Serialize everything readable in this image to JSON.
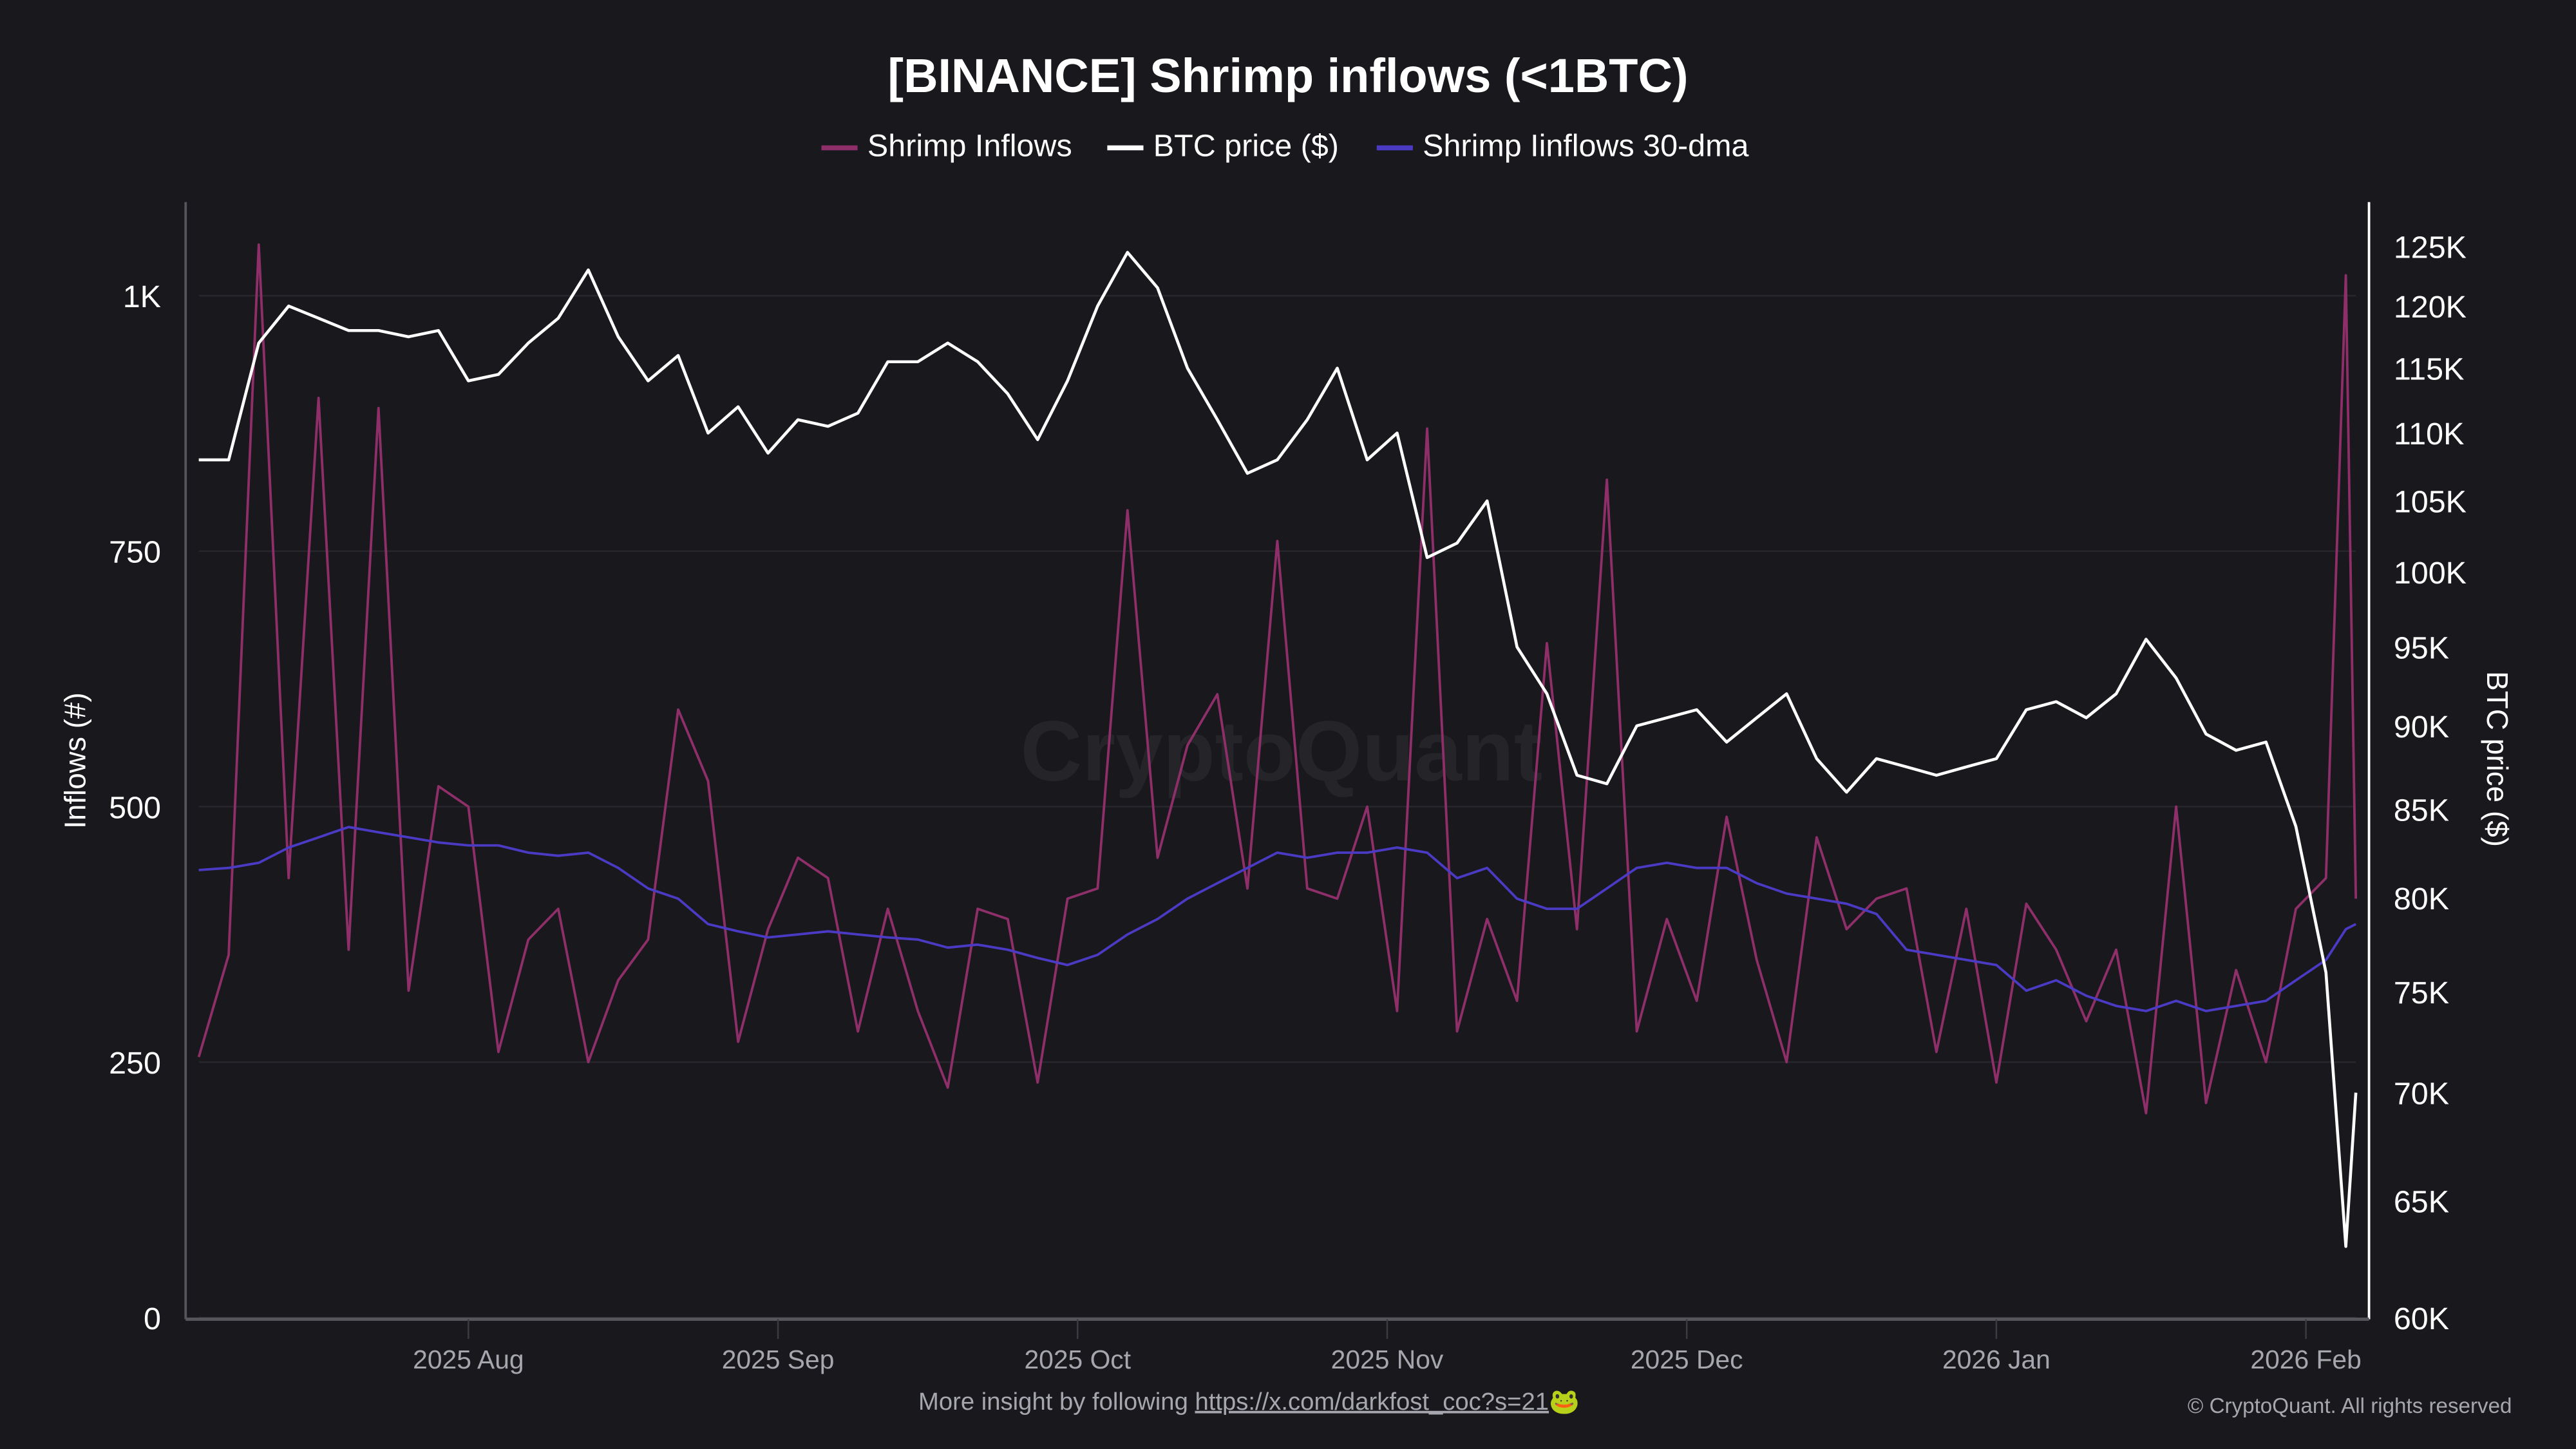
{
  "chart_data": {
    "type": "line",
    "title": "[BINANCE] Shrimp inflows (<1BTC)",
    "legend_placement": "top-center",
    "watermark": "CryptoQuant",
    "grid": true,
    "y_left": {
      "label": "Inflows (#)",
      "range": [
        0,
        1090
      ],
      "scale": "linear",
      "ticks": [
        0,
        250,
        500,
        750,
        1000
      ],
      "tick_labels": [
        "0",
        "250",
        "500",
        "750",
        "1K"
      ]
    },
    "y_right": {
      "label": "BTC price ($)",
      "range": [
        60000,
        128000
      ],
      "scale": "log",
      "ticks": [
        60000,
        65000,
        70000,
        75000,
        80000,
        85000,
        90000,
        95000,
        100000,
        105000,
        110000,
        115000,
        120000,
        125000
      ],
      "tick_labels": [
        "60K",
        "65K",
        "70K",
        "75K",
        "80K",
        "85K",
        "90K",
        "95K",
        "100K",
        "105K",
        "110K",
        "115K",
        "120K",
        "125K"
      ]
    },
    "x_axis": {
      "ticks": [
        "2025-08-01",
        "2025-09-01",
        "2025-10-01",
        "2025-11-01",
        "2025-12-01",
        "2026-01-01",
        "2026-02-01"
      ],
      "tick_labels": [
        "2025 Aug",
        "2025 Sep",
        "2025 Oct",
        "2025 Nov",
        "2025 Dec",
        "2026 Jan",
        "2026 Feb"
      ],
      "range": [
        "2025-07-05",
        "2026-02-06"
      ]
    },
    "x": [
      "2025-07-05",
      "2025-07-08",
      "2025-07-11",
      "2025-07-14",
      "2025-07-17",
      "2025-07-20",
      "2025-07-23",
      "2025-07-26",
      "2025-07-29",
      "2025-08-01",
      "2025-08-04",
      "2025-08-07",
      "2025-08-10",
      "2025-08-13",
      "2025-08-16",
      "2025-08-19",
      "2025-08-22",
      "2025-08-25",
      "2025-08-28",
      "2025-08-31",
      "2025-09-03",
      "2025-09-06",
      "2025-09-09",
      "2025-09-12",
      "2025-09-15",
      "2025-09-18",
      "2025-09-21",
      "2025-09-24",
      "2025-09-27",
      "2025-09-30",
      "2025-10-03",
      "2025-10-06",
      "2025-10-09",
      "2025-10-12",
      "2025-10-15",
      "2025-10-18",
      "2025-10-21",
      "2025-10-24",
      "2025-10-27",
      "2025-10-30",
      "2025-11-02",
      "2025-11-05",
      "2025-11-08",
      "2025-11-11",
      "2025-11-14",
      "2025-11-17",
      "2025-11-20",
      "2025-11-23",
      "2025-11-26",
      "2025-11-29",
      "2025-12-02",
      "2025-12-05",
      "2025-12-08",
      "2025-12-11",
      "2025-12-14",
      "2025-12-17",
      "2025-12-20",
      "2025-12-23",
      "2025-12-26",
      "2025-12-29",
      "2026-01-01",
      "2026-01-04",
      "2026-01-07",
      "2026-01-10",
      "2026-01-13",
      "2026-01-16",
      "2026-01-19",
      "2026-01-22",
      "2026-01-25",
      "2026-01-28",
      "2026-01-31",
      "2026-02-03",
      "2026-02-05",
      "2026-02-06"
    ],
    "series": [
      {
        "name": "Shrimp Inflows",
        "axis": "left",
        "color": "#8e2f6a",
        "values": [
          255,
          355,
          1050,
          430,
          900,
          360,
          890,
          320,
          520,
          500,
          260,
          370,
          400,
          250,
          330,
          370,
          595,
          525,
          270,
          380,
          450,
          430,
          280,
          400,
          300,
          225,
          400,
          390,
          230,
          410,
          420,
          790,
          450,
          560,
          610,
          420,
          760,
          420,
          410,
          500,
          300,
          870,
          280,
          390,
          310,
          660,
          380,
          820,
          280,
          390,
          310,
          490,
          350,
          250,
          470,
          380,
          410,
          420,
          260,
          400,
          230,
          405,
          360,
          290,
          360,
          200,
          500,
          210,
          340,
          250,
          400,
          430,
          1020,
          410
        ]
      },
      {
        "name": "BTC price ($)",
        "axis": "right",
        "color": "#ffffff",
        "values": [
          108000,
          108000,
          117000,
          120000,
          119000,
          118000,
          118000,
          117500,
          118000,
          114000,
          114500,
          117000,
          119000,
          123000,
          117500,
          114000,
          116000,
          110000,
          112000,
          108500,
          111000,
          110500,
          111500,
          115500,
          115500,
          117000,
          115500,
          113000,
          109500,
          114000,
          120000,
          124500,
          121500,
          115000,
          111000,
          107000,
          108000,
          111000,
          115000,
          108000,
          110000,
          101000,
          102000,
          105000,
          95000,
          92000,
          87000,
          86500,
          90000,
          90500,
          91000,
          89000,
          90500,
          92000,
          88000,
          86000,
          88000,
          87500,
          87000,
          87500,
          88000,
          91000,
          91500,
          90500,
          92000,
          95500,
          93000,
          89500,
          88500,
          89000,
          84000,
          76000,
          63000,
          70000
        ]
      },
      {
        "name": "Shrimp Iinflows 30-dma",
        "axis": "left",
        "color": "#4b3bc4",
        "values": [
          438,
          440,
          445,
          460,
          470,
          480,
          475,
          470,
          465,
          462,
          462,
          455,
          452,
          455,
          440,
          420,
          410,
          385,
          378,
          372,
          375,
          378,
          375,
          372,
          370,
          362,
          365,
          360,
          352,
          345,
          355,
          375,
          390,
          410,
          425,
          440,
          455,
          450,
          455,
          455,
          460,
          455,
          430,
          440,
          410,
          400,
          400,
          420,
          440,
          445,
          440,
          440,
          425,
          415,
          410,
          405,
          395,
          360,
          355,
          350,
          345,
          320,
          330,
          315,
          305,
          300,
          310,
          300,
          305,
          310,
          330,
          350,
          380,
          385
        ]
      }
    ]
  },
  "legend": [
    "Shrimp Inflows",
    "BTC price ($)",
    "Shrimp Iinflows 30-dma"
  ],
  "footer": {
    "text": "More insight by following",
    "link": "https://x.com/darkfost_coc?s=21",
    "emoji": "🐸",
    "copyright": "© CryptoQuant. All rights reserved"
  },
  "colors": {
    "background": "#18181d",
    "grid": "#26262c"
  }
}
